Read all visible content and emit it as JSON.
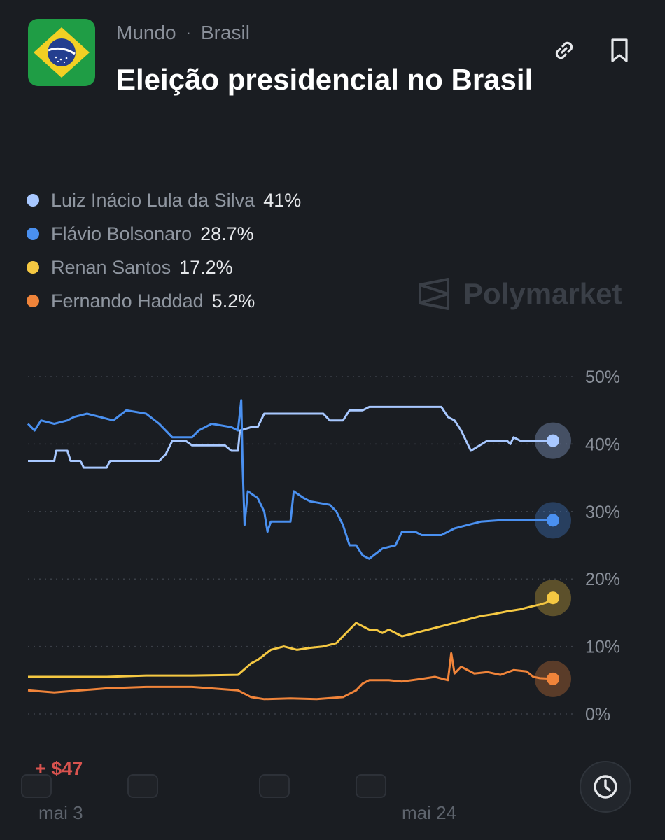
{
  "header": {
    "breadcrumb": [
      "Mundo",
      "Brasil"
    ],
    "separator": "·",
    "title": "Eleição presidencial no Brasil"
  },
  "icons": {
    "flag": "brazil-flag-icon",
    "link": "link-icon",
    "bookmark": "bookmark-icon",
    "history": "clock-icon"
  },
  "legend": [
    {
      "name": "Luiz Inácio Lula da Silva",
      "value": "41%",
      "color": "#a8c8ff"
    },
    {
      "name": "Flávio Bolsonaro",
      "value": "28.7%",
      "color": "#4a90f0"
    },
    {
      "name": "Renan Santos",
      "value": "17.2%",
      "color": "#f5c842"
    },
    {
      "name": "Fernando Haddad",
      "value": "5.2%",
      "color": "#f0843a"
    }
  ],
  "watermark": "Polymarket",
  "pnl": "+ $47",
  "chart_data": {
    "type": "line",
    "y_ticks": [
      "50%",
      "40%",
      "30%",
      "20%",
      "10%",
      "0%"
    ],
    "ylim": [
      0,
      50
    ],
    "x_tick_labels": [
      "mai 3",
      "mai 24"
    ],
    "grid": true,
    "series": [
      {
        "name": "Luiz Inácio Lula da Silva",
        "color": "#a8c8ff",
        "points": [
          [
            0,
            37.5
          ],
          [
            4,
            37.5
          ],
          [
            4.3,
            39
          ],
          [
            6,
            39
          ],
          [
            6.5,
            37.5
          ],
          [
            8,
            37.5
          ],
          [
            8.5,
            36.5
          ],
          [
            12,
            36.5
          ],
          [
            12.5,
            37.5
          ],
          [
            20,
            37.5
          ],
          [
            21,
            38.5
          ],
          [
            22,
            40.5
          ],
          [
            24,
            40.5
          ],
          [
            25,
            39.8
          ],
          [
            30,
            39.8
          ],
          [
            31,
            39
          ],
          [
            32,
            39
          ],
          [
            32.3,
            42
          ],
          [
            34,
            42.5
          ],
          [
            35,
            42.5
          ],
          [
            36,
            44.5
          ],
          [
            45,
            44.5
          ],
          [
            46,
            43.5
          ],
          [
            48,
            43.5
          ],
          [
            49,
            45
          ],
          [
            51,
            45
          ],
          [
            52,
            45.5
          ],
          [
            63,
            45.5
          ],
          [
            64,
            44
          ],
          [
            65,
            43.5
          ],
          [
            66,
            42
          ],
          [
            67,
            40
          ],
          [
            67.5,
            39
          ],
          [
            70,
            40.5
          ],
          [
            73,
            40.5
          ],
          [
            73.5,
            40
          ],
          [
            74,
            41
          ],
          [
            75,
            40.5
          ],
          [
            80,
            40.5
          ]
        ]
      },
      {
        "name": "Flávio Bolsonaro",
        "color": "#4a90f0",
        "points": [
          [
            0,
            43
          ],
          [
            1,
            42
          ],
          [
            2,
            43.5
          ],
          [
            4,
            43
          ],
          [
            6,
            43.5
          ],
          [
            7,
            44
          ],
          [
            9,
            44.5
          ],
          [
            11,
            44
          ],
          [
            13,
            43.5
          ],
          [
            15,
            45
          ],
          [
            18,
            44.5
          ],
          [
            20,
            43
          ],
          [
            22,
            41
          ],
          [
            25,
            41
          ],
          [
            26,
            42
          ],
          [
            28,
            43
          ],
          [
            31,
            42.5
          ],
          [
            32,
            42
          ],
          [
            32.5,
            46.5
          ],
          [
            32.7,
            37
          ],
          [
            33,
            28
          ],
          [
            33.5,
            33
          ],
          [
            35,
            32
          ],
          [
            36,
            30
          ],
          [
            36.5,
            27
          ],
          [
            37,
            28.5
          ],
          [
            40,
            28.5
          ],
          [
            40.5,
            33
          ],
          [
            42,
            32
          ],
          [
            43,
            31.5
          ],
          [
            46,
            31
          ],
          [
            47,
            30
          ],
          [
            48,
            28
          ],
          [
            49,
            25
          ],
          [
            50,
            25
          ],
          [
            51,
            23.5
          ],
          [
            52,
            23
          ],
          [
            54,
            24.5
          ],
          [
            56,
            25
          ],
          [
            57,
            27
          ],
          [
            59,
            27
          ],
          [
            60,
            26.5
          ],
          [
            63,
            26.5
          ],
          [
            64,
            27
          ],
          [
            65,
            27.5
          ],
          [
            67,
            28
          ],
          [
            69,
            28.5
          ],
          [
            72,
            28.7
          ],
          [
            80,
            28.7
          ]
        ]
      },
      {
        "name": "Renan Santos",
        "color": "#f5c842",
        "points": [
          [
            0,
            5.5
          ],
          [
            8,
            5.5
          ],
          [
            12,
            5.5
          ],
          [
            18,
            5.7
          ],
          [
            25,
            5.7
          ],
          [
            32,
            5.8
          ],
          [
            34,
            7.5
          ],
          [
            35,
            8
          ],
          [
            37,
            9.5
          ],
          [
            39,
            10
          ],
          [
            41,
            9.5
          ],
          [
            43,
            9.8
          ],
          [
            45,
            10
          ],
          [
            47,
            10.5
          ],
          [
            48,
            11.5
          ],
          [
            49,
            12.5
          ],
          [
            50,
            13.5
          ],
          [
            51,
            13
          ],
          [
            52,
            12.5
          ],
          [
            53,
            12.5
          ],
          [
            54,
            12
          ],
          [
            55,
            12.5
          ],
          [
            57,
            11.5
          ],
          [
            59,
            12
          ],
          [
            61,
            12.5
          ],
          [
            63,
            13
          ],
          [
            65,
            13.5
          ],
          [
            67,
            14
          ],
          [
            69,
            14.5
          ],
          [
            71,
            14.8
          ],
          [
            73,
            15.2
          ],
          [
            75,
            15.5
          ],
          [
            77,
            16
          ],
          [
            78,
            16.2
          ],
          [
            79,
            16.5
          ],
          [
            80,
            17.2
          ]
        ]
      },
      {
        "name": "Fernando Haddad",
        "color": "#f0843a",
        "points": [
          [
            0,
            3.5
          ],
          [
            4,
            3.2
          ],
          [
            8,
            3.5
          ],
          [
            12,
            3.8
          ],
          [
            18,
            4
          ],
          [
            25,
            4
          ],
          [
            32,
            3.5
          ],
          [
            34,
            2.5
          ],
          [
            36,
            2.2
          ],
          [
            40,
            2.3
          ],
          [
            44,
            2.2
          ],
          [
            48,
            2.5
          ],
          [
            50,
            3.5
          ],
          [
            51,
            4.5
          ],
          [
            52,
            5
          ],
          [
            55,
            5
          ],
          [
            57,
            4.8
          ],
          [
            60,
            5.2
          ],
          [
            62,
            5.5
          ],
          [
            64,
            5
          ],
          [
            64.5,
            9
          ],
          [
            65,
            6
          ],
          [
            66,
            7
          ],
          [
            67,
            6.5
          ],
          [
            68,
            6
          ],
          [
            70,
            6.2
          ],
          [
            72,
            5.8
          ],
          [
            74,
            6.5
          ],
          [
            76,
            6.3
          ],
          [
            77,
            5.5
          ],
          [
            78,
            5.3
          ],
          [
            80,
            5.2
          ]
        ]
      }
    ]
  }
}
